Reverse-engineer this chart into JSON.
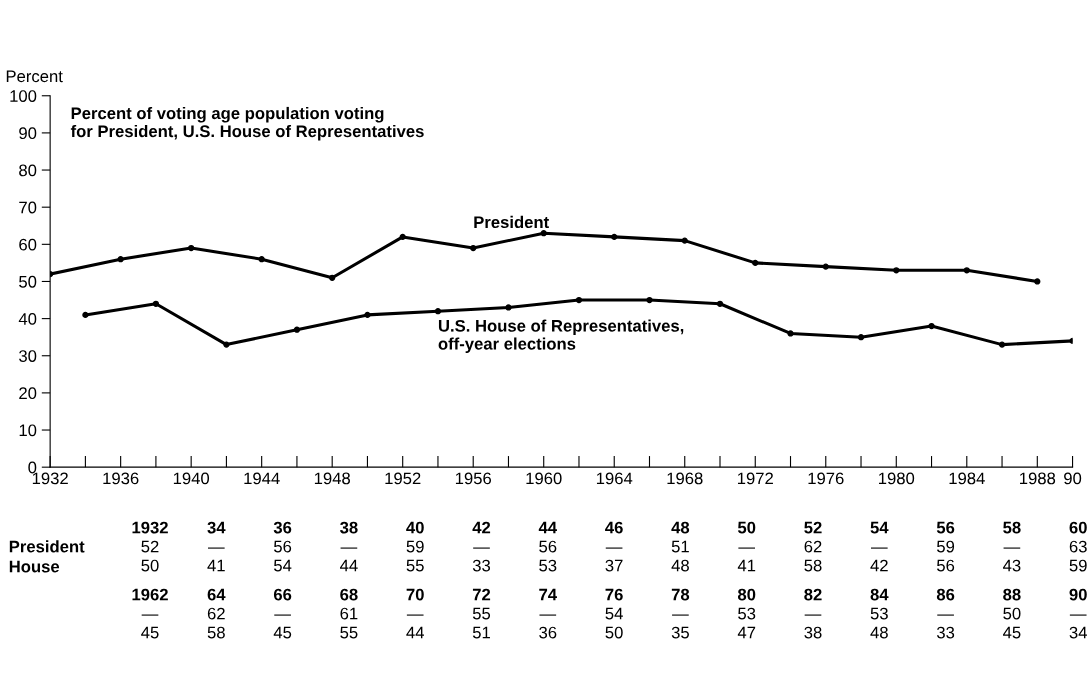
{
  "chart_data": {
    "type": "line",
    "title": "Percent of voting age population voting\nfor President, U.S. House of Representatives",
    "ylabel": "Percent",
    "series": [
      {
        "name": "President",
        "color": "#000000",
        "x": [
          1932,
          1936,
          1940,
          1944,
          1948,
          1952,
          1956,
          1960,
          1964,
          1968,
          1972,
          1976,
          1980,
          1984,
          1988
        ],
        "values": [
          52,
          56,
          59,
          56,
          51,
          62,
          59,
          63,
          62,
          61,
          55,
          54,
          53,
          53,
          50
        ]
      },
      {
        "name": "U.S. House of Representatives,\noff-year elections",
        "color": "#000000",
        "x": [
          1934,
          1938,
          1942,
          1946,
          1950,
          1954,
          1958,
          1962,
          1966,
          1970,
          1974,
          1978,
          1982,
          1986,
          1990
        ],
        "values": [
          41,
          44,
          33,
          37,
          41,
          42,
          43,
          45,
          45,
          44,
          36,
          35,
          38,
          33,
          34
        ]
      }
    ],
    "xlim": [
      1932,
      1990
    ],
    "ylim": [
      0,
      100
    ],
    "xticks": [
      1932,
      {
        "value": 1934,
        "label": null
      },
      1936,
      {
        "value": 1938,
        "label": null
      },
      1940,
      {
        "value": 1942,
        "label": null
      },
      1944,
      {
        "value": 1946,
        "label": null
      },
      1948,
      {
        "value": 1950,
        "label": null
      },
      1952,
      {
        "value": 1954,
        "label": null
      },
      1956,
      {
        "value": 1958,
        "label": null
      },
      1960,
      {
        "value": 1962,
        "label": null
      },
      1964,
      {
        "value": 1966,
        "label": null
      },
      1968,
      {
        "value": 1970,
        "label": null
      },
      1972,
      {
        "value": 1974,
        "label": null
      },
      1976,
      {
        "value": 1978,
        "label": null
      },
      1980,
      {
        "value": 1982,
        "label": null
      },
      1984,
      {
        "value": 1986,
        "label": null
      },
      1988,
      {
        "value": 1990,
        "label": "90"
      }
    ],
    "yticks": [
      0,
      10,
      20,
      30,
      40,
      50,
      60,
      70,
      80,
      90,
      100
    ],
    "grid": false,
    "legend": false,
    "marker": "circle",
    "line_style": "solid",
    "annotations": [
      "President",
      "House",
      "1932\n52\n50",
      "34\n—\n41",
      "36\n56\n54",
      "38\n—\n44",
      "40\n59\n55",
      "42\n—\n33",
      "44\n56\n53",
      "46\n—\n37",
      "48\n51\n48",
      "50\n—\n41",
      "52\n62\n58",
      "54\n—\n42",
      "56\n59\n56",
      "58\n—\n43",
      "60\n63\n59",
      "1962\n—\n45",
      "64\n62\n58",
      "66\n—\n45",
      "68\n61\n55",
      "70\n—\n44",
      "72\n55\n51",
      "74\n—\n36",
      "76\n54\n50",
      "78\n—\n35",
      "80\n53\n47",
      "82\n—\n38",
      "84\n53\n48",
      "86\n—\n33",
      "88\n50\n45",
      "90\n—\n34"
    ]
  }
}
